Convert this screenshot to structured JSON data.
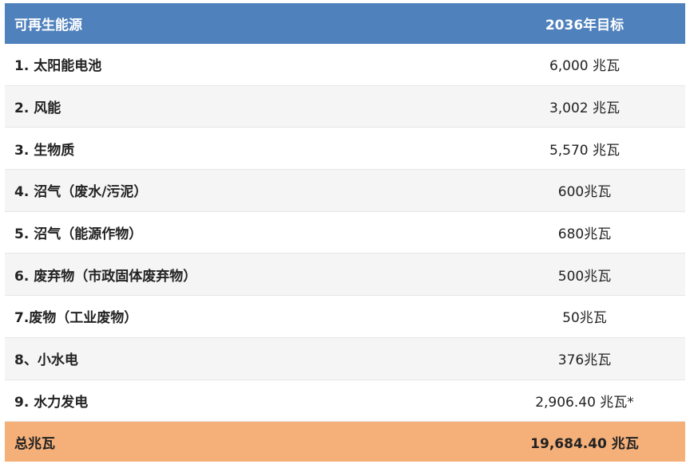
{
  "table": {
    "headers": [
      "可再生能源",
      "2036年目标"
    ],
    "rows": [
      {
        "source": "1. 太阳能电池",
        "target": "6,000 兆瓦"
      },
      {
        "source": "2. 风能",
        "target": "3,002 兆瓦"
      },
      {
        "source": "3. 生物质",
        "target": "5,570 兆瓦"
      },
      {
        "source": "4. 沼气（废水/污泥）",
        "target": "600兆瓦"
      },
      {
        "source": "5. 沼气（能源作物）",
        "target": "680兆瓦"
      },
      {
        "source": "6. 废弃物（市政固体废弃物）",
        "target": "500兆瓦"
      },
      {
        "source": "7.废物（工业废物）",
        "target": "50兆瓦"
      },
      {
        "source": "8、小水电",
        "target": "376兆瓦"
      },
      {
        "source": "9. 水力发电",
        "target": "2,906.40 兆瓦*"
      }
    ],
    "total": {
      "label": "总兆瓦",
      "value": "19,684.40 兆瓦"
    }
  },
  "colors": {
    "header": "#4f81bd",
    "total": "#f5b07a"
  }
}
